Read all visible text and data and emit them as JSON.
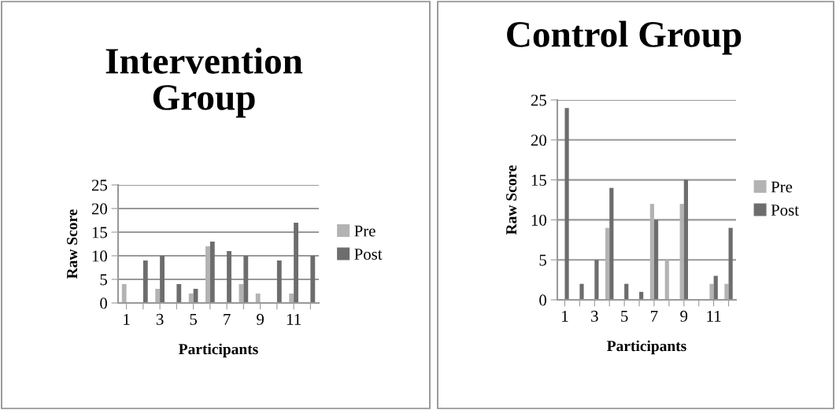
{
  "chart_data": [
    {
      "type": "bar",
      "title": "Intervention Group",
      "xlabel": "Participants",
      "ylabel": "Raw Score",
      "categories": [
        "1",
        null,
        "3",
        null,
        "5",
        null,
        "7",
        null,
        "9",
        null,
        "11",
        null
      ],
      "series": [
        {
          "name": "Pre",
          "color": "#b3b3b3",
          "values": [
            4,
            0,
            3,
            0,
            2,
            12,
            0,
            4,
            2,
            0,
            2,
            0
          ]
        },
        {
          "name": "Post",
          "color": "#6d6d6d",
          "values": [
            0,
            9,
            10,
            4,
            3,
            13,
            11,
            10,
            0,
            9,
            17,
            10
          ]
        }
      ],
      "ylim": [
        0,
        25
      ],
      "yticks": [
        0,
        5,
        10,
        15,
        20,
        25
      ],
      "grid": "y",
      "legend": "right"
    },
    {
      "type": "bar",
      "title": "Control Group",
      "xlabel": "Participants",
      "ylabel": "Raw Score",
      "categories": [
        "1",
        null,
        "3",
        null,
        "5",
        null,
        "7",
        null,
        "9",
        null,
        "11",
        null
      ],
      "series": [
        {
          "name": "Pre",
          "color": "#b3b3b3",
          "values": [
            0,
            0,
            0,
            9,
            0,
            0,
            12,
            5,
            12,
            0,
            2,
            2
          ]
        },
        {
          "name": "Post",
          "color": "#6d6d6d",
          "values": [
            24,
            2,
            5,
            14,
            2,
            1,
            10,
            0,
            15,
            0,
            3,
            9
          ]
        }
      ],
      "ylim": [
        0,
        25
      ],
      "yticks": [
        0,
        5,
        10,
        15,
        20,
        25
      ],
      "grid": "y",
      "legend": "right"
    }
  ]
}
